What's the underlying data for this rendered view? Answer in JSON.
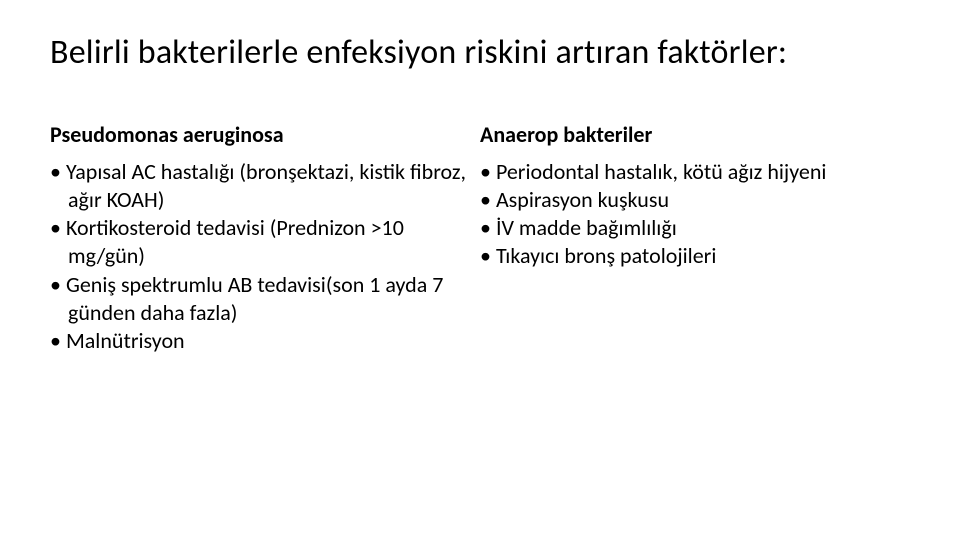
{
  "slide": {
    "title": "Belirli bakterilerle enfeksiyon riskini artıran faktörler:",
    "left": {
      "heading": "Pseudomonas aeruginosa",
      "items": [
        "Yapısal AC hastalığı (bronşektazi, kistik fibroz, ağır KOAH)",
        "Kortikosteroid tedavisi (Prednizon >10 mg/gün)",
        "Geniş spektrumlu AB tedavisi(son 1 ayda 7 günden daha fazla)",
        "Malnütrisyon"
      ]
    },
    "right": {
      "heading": "Anaerop bakteriler",
      "items": [
        "Periodontal hastalık, kötü ağız hijyeni",
        "Aspirasyon kuşkusu",
        "İV madde bağımlılığı",
        "Tıkayıcı bronş patolojileri"
      ]
    }
  },
  "style": {
    "background_color": "#ffffff",
    "text_color": "#000000",
    "title_fontsize": 34,
    "heading_fontsize": 22,
    "body_fontsize": 22,
    "heading_fontweight": 700,
    "body_fontweight": 400
  }
}
